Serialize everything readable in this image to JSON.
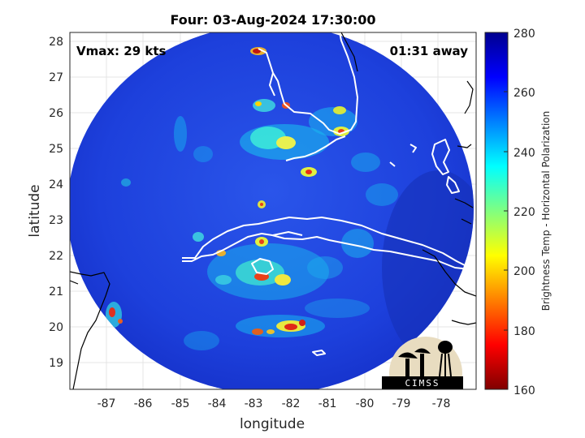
{
  "title": "Four: 03-Aug-2024 17:30:00",
  "vmax_label": "Vmax: 29 kts",
  "time_away": "01:31 away",
  "xlabel": "longitude",
  "ylabel": "latitude",
  "x_ticks": [
    "-87",
    "-86",
    "-85",
    "-84",
    "-83",
    "-82",
    "-81",
    "-80",
    "-79",
    "-78"
  ],
  "y_ticks": [
    "19",
    "20",
    "21",
    "22",
    "23",
    "24",
    "25",
    "26",
    "27",
    "28"
  ],
  "colorbar": {
    "label": "Brightness Temp - Horizontal Polarization",
    "ticks": [
      "160",
      "180",
      "200",
      "220",
      "240",
      "260",
      "280"
    ],
    "range": [
      160,
      280
    ]
  },
  "logo": {
    "text": "CIMSS"
  },
  "colors": {
    "background_field": "#1f44e0",
    "coastline": "#ffffff",
    "land_outline": "#000000"
  }
}
